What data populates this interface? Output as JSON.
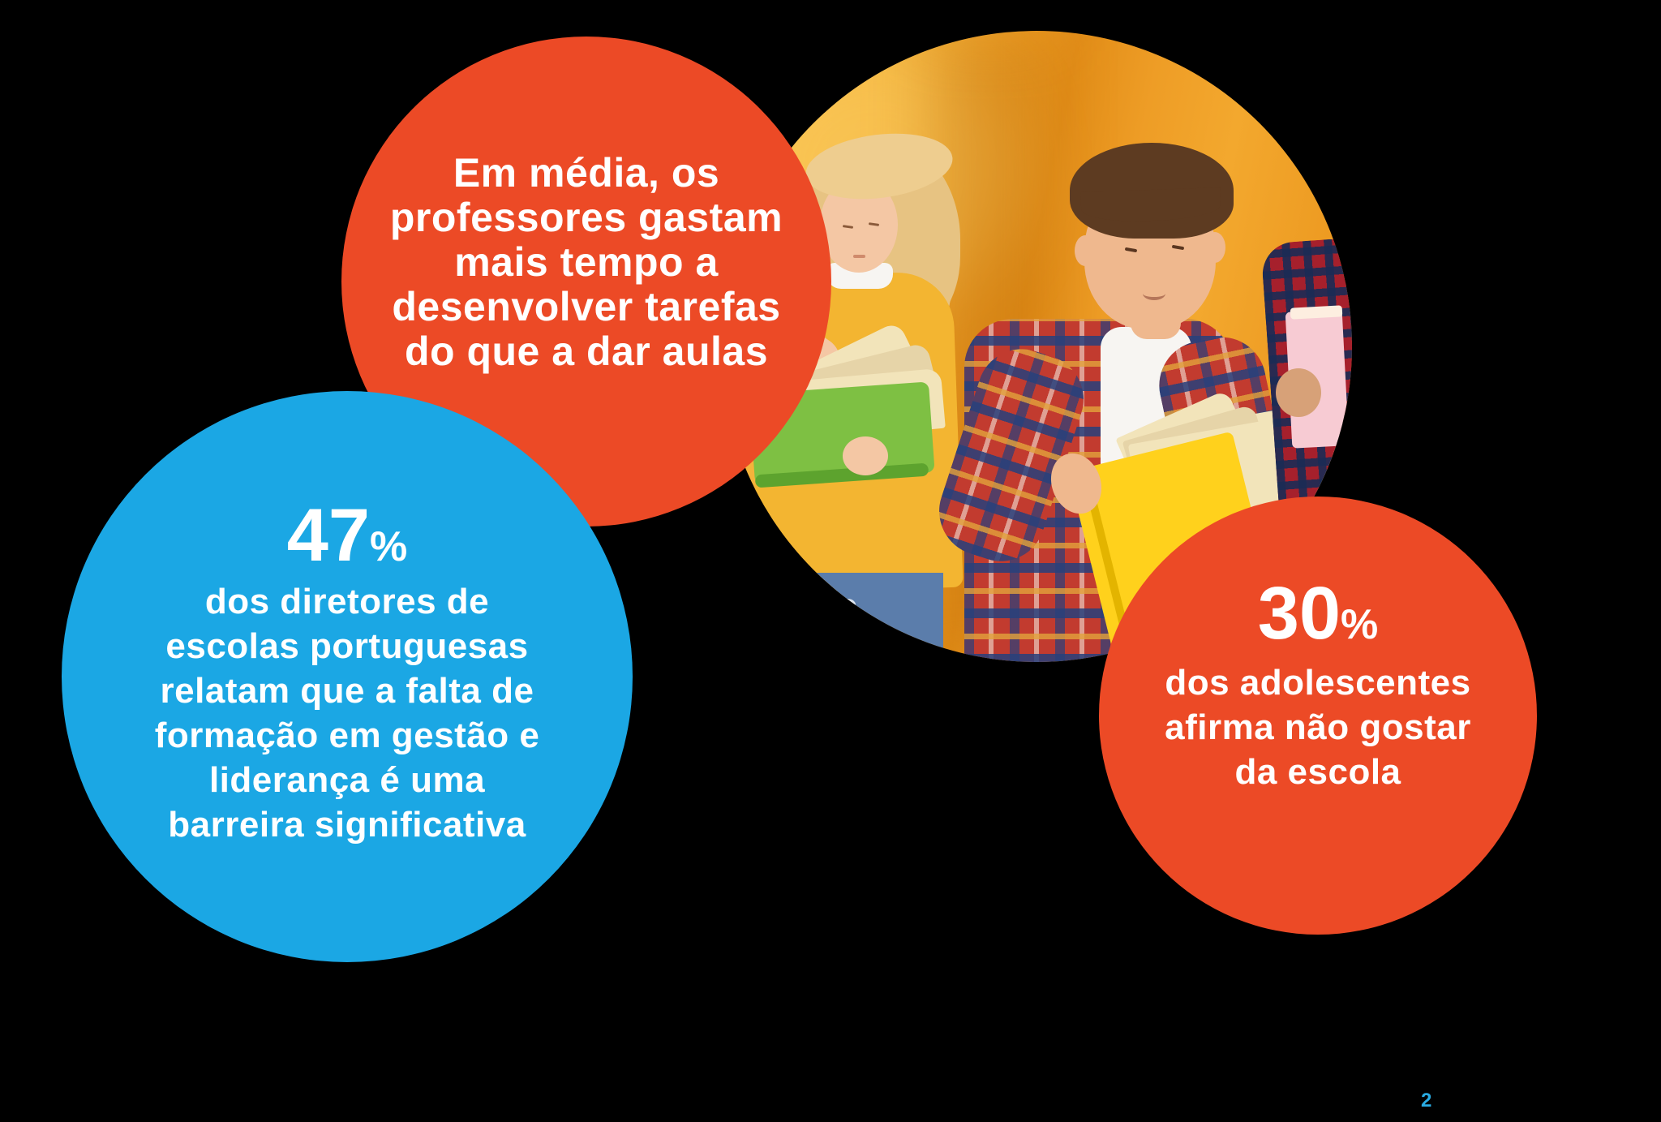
{
  "theme": {
    "bg": "#000000",
    "orange": "#EC4A26",
    "blue": "#1BA7E4",
    "text-white": "#FFFFFF",
    "page-num": "#29ABE2",
    "photo-y1": "#F8C14C",
    "photo-y2": "#F3A82E",
    "photo-deep": "#E28D18",
    "skin-girl": "#F4C7A4",
    "skin-boy": "#EFB88E",
    "skin-kid3": "#D7A178",
    "hair-blonde": "#E7C382",
    "hair-brown": "#5D3B21",
    "sweater-yellow": "#F3B531",
    "jeans-blue": "#5B7DAB",
    "book-green": "#7EC043",
    "book-green-dark": "#5DA32E",
    "book-yellow": "#FFD11C",
    "book-pink": "#F7CBD3",
    "pages-cream": "#F2E4BA",
    "plaid-red": "#C23B2F",
    "plaid-dark-red": "#A6202C",
    "tee-white": "#F7F5F2"
  },
  "bubbles": {
    "teachers": {
      "lines": {
        "0": "Em média, os",
        "1": "professores gastam",
        "2": "mais tempo a",
        "3": "desenvolver tarefas",
        "4": "do que a dar aulas"
      }
    },
    "directors": {
      "value": "47",
      "percent": "%",
      "lines": {
        "0": "dos diretores de",
        "1": "escolas portuguesas",
        "2": "relatam que a falta de",
        "3": "formação em gestão e",
        "4": "liderança é uma",
        "5": "barreira significativa"
      }
    },
    "adolescents": {
      "value": "30",
      "percent": "%",
      "lines": {
        "0": "dos adolescentes",
        "1": "afirma não gostar",
        "2": "da escola"
      }
    }
  },
  "footer": {
    "page_number": "2"
  }
}
